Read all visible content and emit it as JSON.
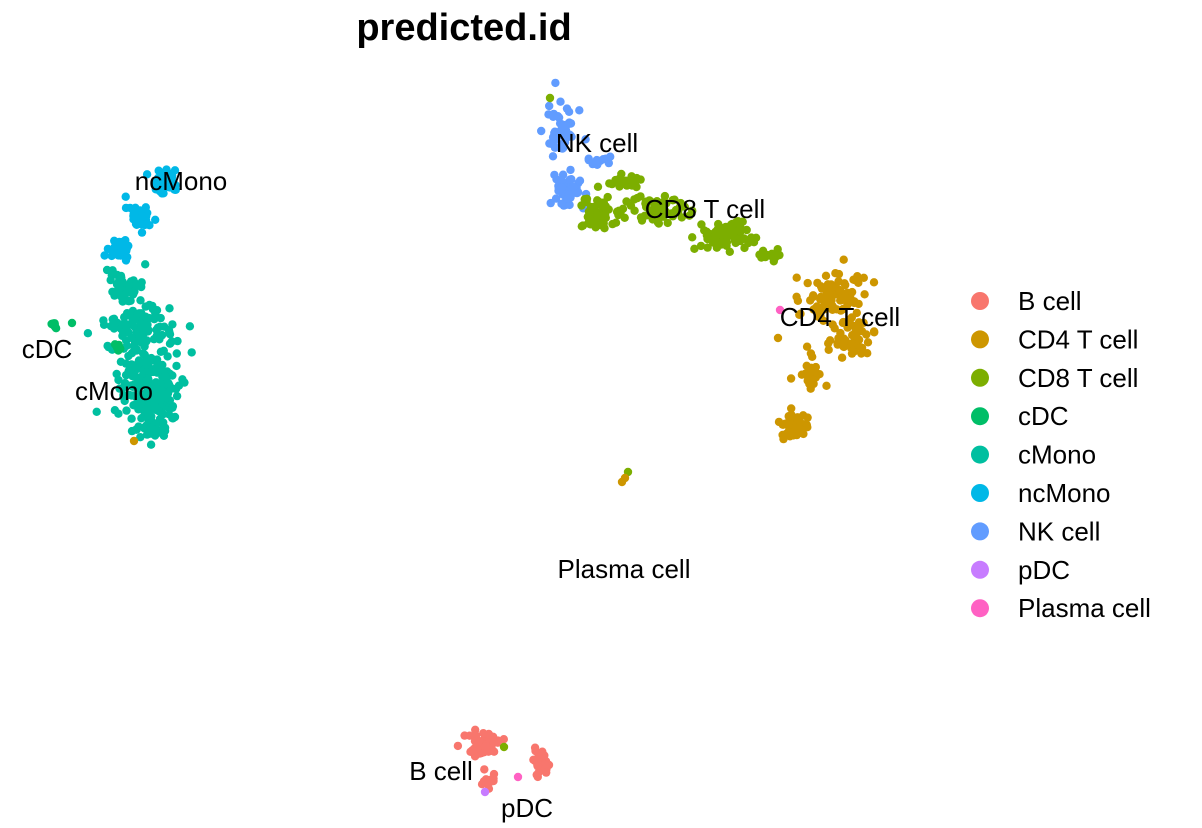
{
  "chart_data": {
    "type": "scatter",
    "title": "predicted.id",
    "xlabel": "",
    "ylabel": "",
    "axes_visible": false,
    "grid": false,
    "legend_position": "right",
    "series": [
      {
        "name": "B cell",
        "color": "#F8766D"
      },
      {
        "name": "CD4 T cell",
        "color": "#CD9600"
      },
      {
        "name": "CD8 T cell",
        "color": "#7CAE00"
      },
      {
        "name": "cDC",
        "color": "#00BE67"
      },
      {
        "name": "cMono",
        "color": "#00BFA0"
      },
      {
        "name": "ncMono",
        "color": "#00B8E7"
      },
      {
        "name": "NK cell",
        "color": "#619CFF"
      },
      {
        "name": "pDC",
        "color": "#C77CFF"
      },
      {
        "name": "Plasma cell",
        "color": "#FF61C3"
      }
    ],
    "cluster_labels": [
      "NK cell",
      "ncMono",
      "CD8 T cell",
      "CD4 T cell",
      "cDC",
      "cMono",
      "Plasma cell",
      "B cell",
      "pDC"
    ]
  }
}
